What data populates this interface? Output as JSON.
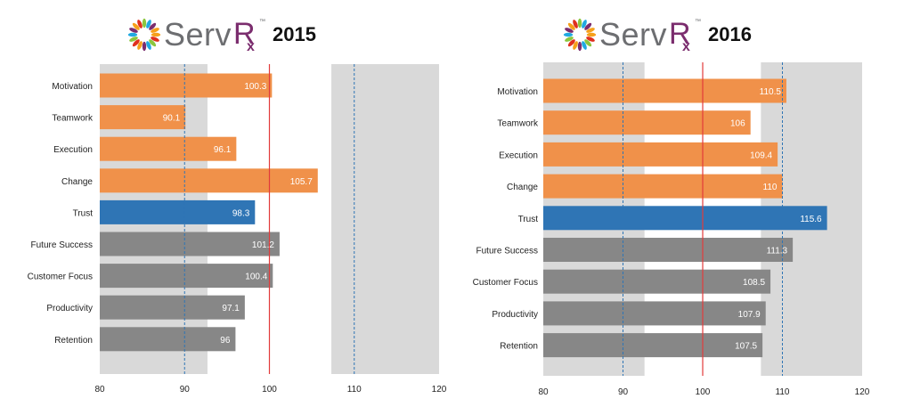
{
  "brand": {
    "serv_text": "Serv",
    "rx_symbol": "R",
    "rx_sub": "x",
    "trademark": "™",
    "icon": "sunburst-logo-icon",
    "colors": {
      "serv": "#6d6e71",
      "rx": "#7b2d6e"
    }
  },
  "colors": {
    "orange": "#f0914a",
    "blue": "#2f75b5",
    "gray": "#878787",
    "band": "#d9d9d9",
    "red_line": "#e23b3b",
    "blue_dashed": "#2f75b5"
  },
  "chart_data": [
    {
      "type": "bar",
      "orientation": "horizontal",
      "year": "2015",
      "categories": [
        "Motivation",
        "Teamwork",
        "Execution",
        "Change",
        "Trust",
        "Future Success",
        "Customer Focus",
        "Productivity",
        "Retention"
      ],
      "values": [
        100.3,
        90.1,
        96.1,
        105.7,
        98.3,
        101.2,
        100.4,
        97.1,
        96
      ],
      "value_labels": [
        "100.3",
        "90.1",
        "96.1",
        "105.7",
        "98.3",
        "101.2",
        "100.4",
        "97.1",
        "96"
      ],
      "bar_colors": [
        "orange",
        "orange",
        "orange",
        "orange",
        "blue",
        "gray",
        "gray",
        "gray",
        "gray"
      ],
      "xlim": [
        80,
        120
      ],
      "xticks": [
        "80",
        "90",
        "100",
        "110",
        "120"
      ],
      "bands": [
        [
          80,
          92.7
        ],
        [
          107.3,
          120
        ]
      ],
      "reference_line": 100,
      "dashed_lines": [
        90,
        110
      ]
    },
    {
      "type": "bar",
      "orientation": "horizontal",
      "year": "2016",
      "categories": [
        "Motivation",
        "Teamwork",
        "Execution",
        "Change",
        "Trust",
        "Future Success",
        "Customer Focus",
        "Productivity",
        "Retention"
      ],
      "values": [
        110.5,
        106,
        109.4,
        110,
        115.6,
        111.3,
        108.5,
        107.9,
        107.5
      ],
      "value_labels": [
        "110.5",
        "106",
        "109.4",
        "110",
        "115.6",
        "111.3",
        "108.5",
        "107.9",
        "107.5"
      ],
      "bar_colors": [
        "orange",
        "orange",
        "orange",
        "orange",
        "blue",
        "gray",
        "gray",
        "gray",
        "gray"
      ],
      "xlim": [
        80,
        120
      ],
      "xticks": [
        "80",
        "90",
        "100",
        "110",
        "120"
      ],
      "bands": [
        [
          80,
          92.7
        ],
        [
          107.3,
          120
        ]
      ],
      "reference_line": 100,
      "dashed_lines": [
        90,
        110
      ]
    }
  ]
}
